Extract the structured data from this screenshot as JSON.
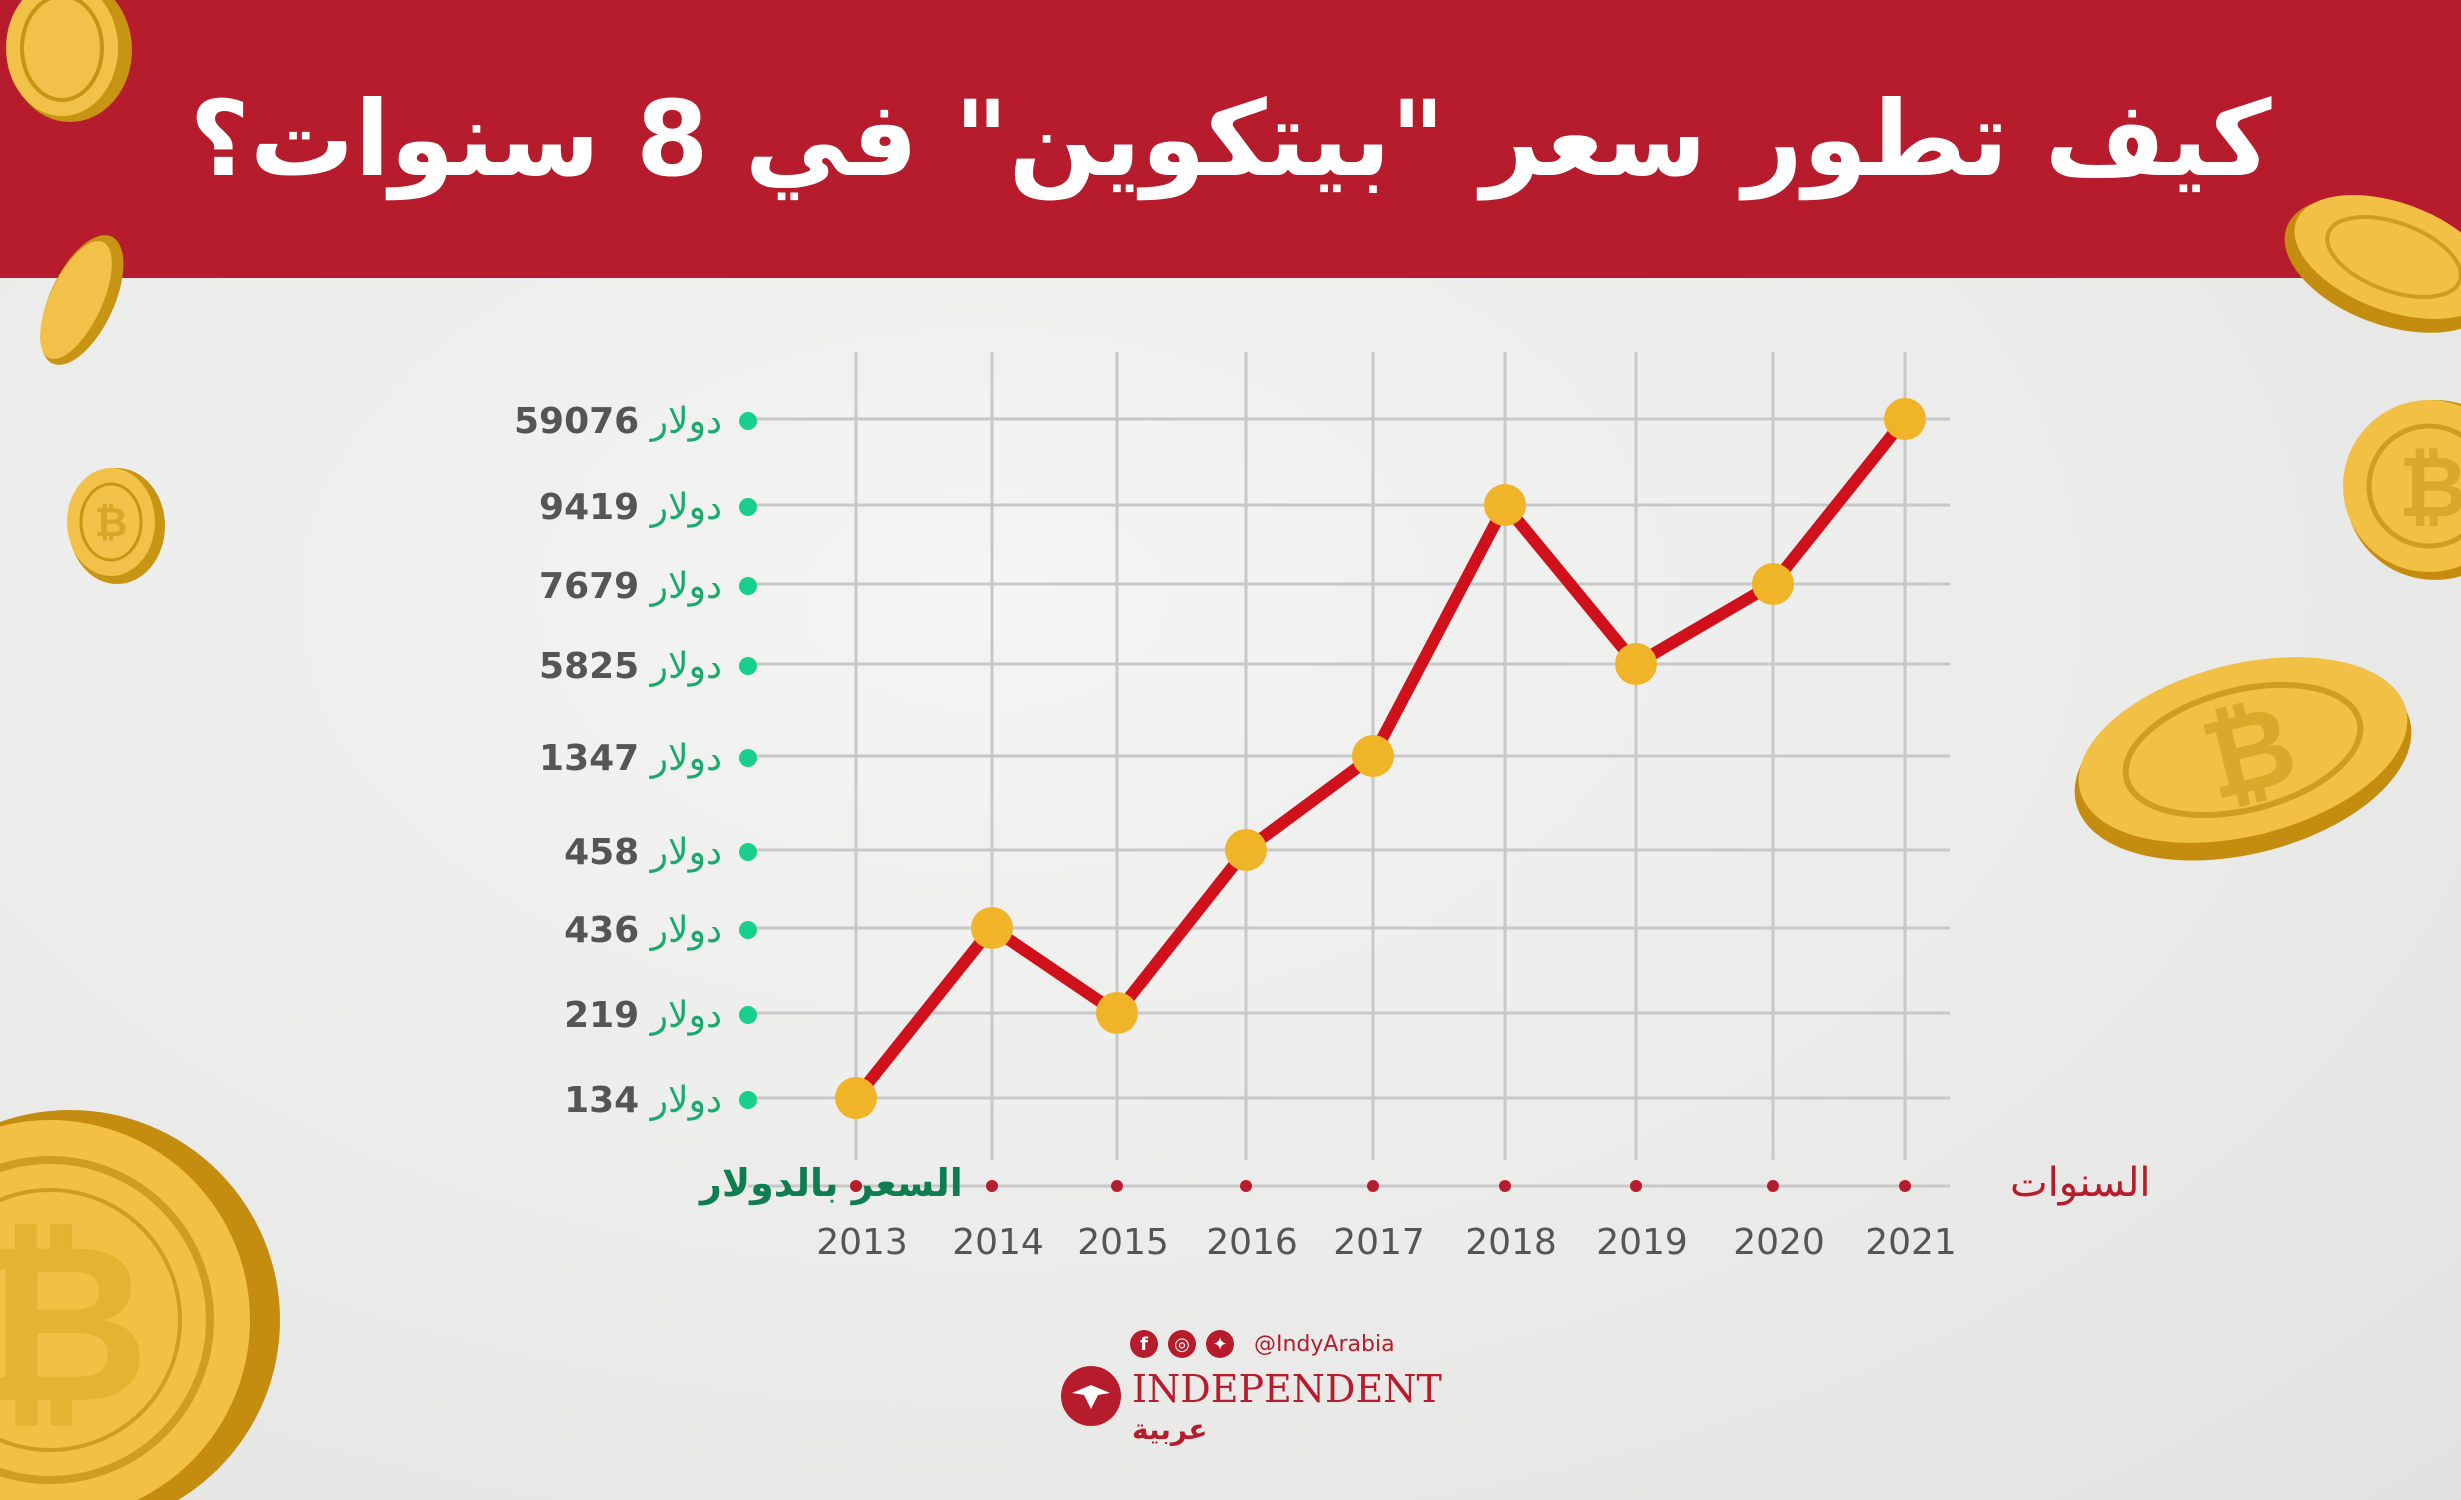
{
  "header": {
    "title": "كيف تطور سعر \"بيتكوين\" في 8 سنوات؟",
    "background": "#b71c2d"
  },
  "chart_data": {
    "type": "line",
    "title": "كيف تطور سعر \"بيتكوين\" في 8 سنوات؟",
    "x": [
      "2013",
      "2014",
      "2015",
      "2016",
      "2017",
      "2018",
      "2019",
      "2020",
      "2021"
    ],
    "series": [
      {
        "values": [
          134,
          436,
          219,
          458,
          1347,
          9419,
          5825,
          7679,
          59076
        ]
      }
    ],
    "y_ticks": [
      {
        "value": 134,
        "label": "134",
        "unit": "دولار"
      },
      {
        "value": 219,
        "label": "219",
        "unit": "دولار"
      },
      {
        "value": 436,
        "label": "436",
        "unit": "دولار"
      },
      {
        "value": 458,
        "label": "458",
        "unit": "دولار"
      },
      {
        "value": 1347,
        "label": "1347",
        "unit": "دولار"
      },
      {
        "value": 5825,
        "label": "5825",
        "unit": "دولار"
      },
      {
        "value": 7679,
        "label": "7679",
        "unit": "دولار"
      },
      {
        "value": 9419,
        "label": "9419",
        "unit": "دولار"
      },
      {
        "value": 59076,
        "label": "59076",
        "unit": "دولار"
      }
    ],
    "xlabel": "السنوات",
    "ylabel": "السعر بالدولار",
    "y_scale": "ordinal (ticks evenly spaced, not proportional)",
    "grid": true,
    "colors": {
      "line": "#d0111b",
      "marker": "#f0b429",
      "tick_dot": "#19d08a",
      "tick_number": "#555555",
      "tick_unit": "#1aaa6e",
      "ylabel": "#0e7d4f",
      "xlabel": "#b71c2d",
      "year_label": "#555555",
      "grid": "#c8c8c8",
      "x_dot": "#b71c2d"
    }
  },
  "footer": {
    "social_icons": [
      "facebook-icon",
      "instagram-icon",
      "twitter-icon"
    ],
    "handle": "@IndyArabia",
    "brand": "INDEPENDENT",
    "brand_sub": "عربية"
  }
}
